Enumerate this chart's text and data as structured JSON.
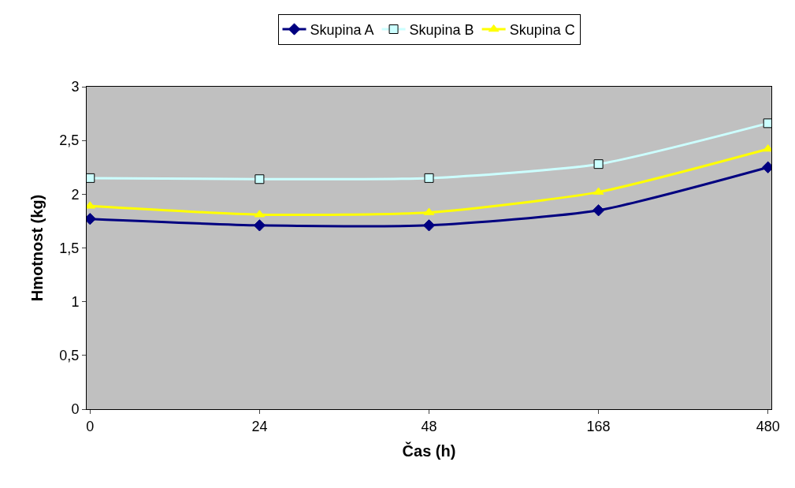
{
  "chart_data": {
    "type": "line",
    "xlabel": "Čas (h)",
    "ylabel": "Hmotnost (kg)",
    "categories": [
      "0",
      "24",
      "48",
      "168",
      "480"
    ],
    "series": [
      {
        "name": "Skupina A",
        "color": "#000080",
        "marker": "diamond",
        "values": [
          1.77,
          1.71,
          1.71,
          1.85,
          2.25
        ]
      },
      {
        "name": "Skupina B",
        "color": "#ccffff",
        "marker": "square",
        "values": [
          2.15,
          2.14,
          2.15,
          2.28,
          2.66
        ]
      },
      {
        "name": "Skupina C",
        "color": "#ffff00",
        "marker": "triangle",
        "values": [
          1.89,
          1.81,
          1.83,
          2.02,
          2.42
        ]
      }
    ],
    "ylim": [
      0,
      3
    ],
    "yticks": [
      0,
      {
        "value": 0.5,
        "label": "0,5"
      },
      1,
      {
        "value": 1.5,
        "label": "1,5"
      },
      2,
      {
        "value": 2.5,
        "label": "2,5"
      },
      3
    ],
    "grid": false,
    "legend": "top",
    "line_style": "solid"
  }
}
